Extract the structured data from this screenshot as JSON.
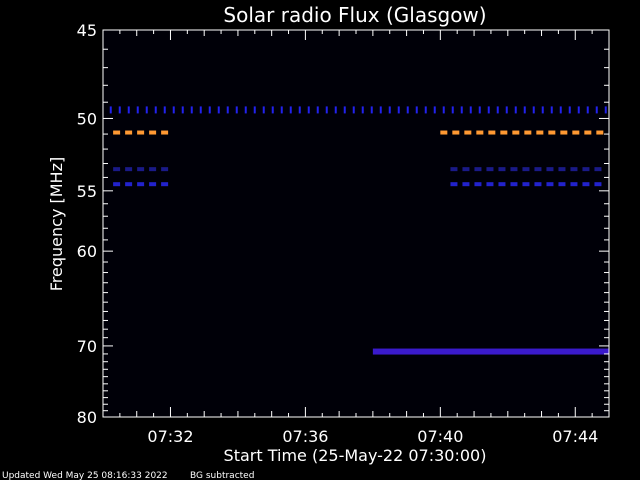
{
  "chart_data": {
    "type": "heatmap",
    "title": "Solar radio Flux (Glasgow)",
    "xlabel": "Start Time (25-May-22 07:30:00)",
    "ylabel": "Frequency [MHz]",
    "x_unit": "minutes after 07:30",
    "xlim": [
      0,
      15
    ],
    "ylim": [
      45,
      80
    ],
    "y_scale": "reciprocal",
    "y_ticks": [
      45,
      50,
      55,
      60,
      70,
      80
    ],
    "x_ticks": [
      {
        "value": 2,
        "label": "07:32"
      },
      {
        "value": 6,
        "label": "07:36"
      },
      {
        "value": 10,
        "label": "07:40"
      },
      {
        "value": 14,
        "label": "07:44"
      }
    ],
    "features": [
      {
        "name": "interference-band-49.5",
        "freq": 49.5,
        "x_start": 0.2,
        "x_end": 15,
        "color": "#2222ee",
        "style": "dots"
      },
      {
        "name": "interference-band-50.9-a",
        "freq": 50.9,
        "x_start": 0.3,
        "x_end": 2.0,
        "color": "#ff9933",
        "style": "dash"
      },
      {
        "name": "interference-band-50.9-b",
        "freq": 50.9,
        "x_start": 10.0,
        "x_end": 14.9,
        "color": "#ff9933",
        "style": "dash"
      },
      {
        "name": "interference-band-53.4-a",
        "freq": 53.4,
        "x_start": 0.3,
        "x_end": 2.0,
        "color": "#1a1a88",
        "style": "dash"
      },
      {
        "name": "interference-band-53.4-b",
        "freq": 53.4,
        "x_start": 10.3,
        "x_end": 14.9,
        "color": "#1a1a88",
        "style": "dash"
      },
      {
        "name": "interference-band-54.5-a",
        "freq": 54.5,
        "x_start": 0.3,
        "x_end": 2.0,
        "color": "#2222cc",
        "style": "dash"
      },
      {
        "name": "interference-band-54.5-b",
        "freq": 54.5,
        "x_start": 10.3,
        "x_end": 14.9,
        "color": "#2222cc",
        "style": "dash"
      },
      {
        "name": "interference-band-70.7",
        "freq": 70.7,
        "x_start": 8.0,
        "x_end": 15,
        "color": "#3a1acc",
        "style": "solid"
      }
    ],
    "colors": {
      "background": "#000000",
      "axis": "#ffffff",
      "plot_bg": "#000008"
    }
  },
  "footer": {
    "updated": "Updated Wed May 25 08:16:33 2022",
    "note": "BG subtracted"
  }
}
